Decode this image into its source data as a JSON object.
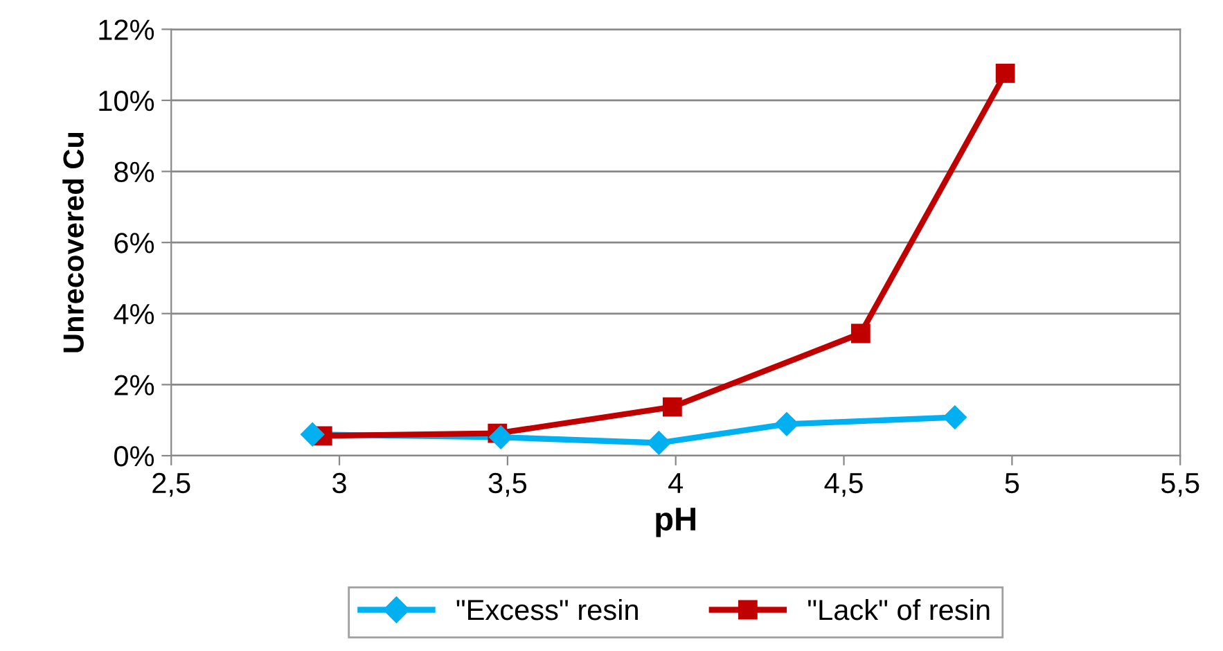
{
  "chart_data": {
    "type": "line",
    "xlabel": "pH",
    "ylabel": "Unrecovered Cu",
    "series": [
      {
        "name": "\"Excess\" resin",
        "color": "#00b0f0",
        "marker": "diamond",
        "x": [
          2.92,
          3.48,
          3.95,
          4.33,
          4.83
        ],
        "values": [
          0.6,
          0.52,
          0.36,
          0.89,
          1.08
        ]
      },
      {
        "name": "\"Lack\" of resin",
        "color": "#c00000",
        "marker": "square",
        "x": [
          2.95,
          3.47,
          3.99,
          4.55,
          4.98
        ],
        "values": [
          0.56,
          0.63,
          1.37,
          3.44,
          10.76
        ]
      }
    ],
    "xlim": [
      2.5,
      5.5
    ],
    "xticks": [
      {
        "value": 2.5,
        "label": "2,5"
      },
      3,
      {
        "value": 3.5,
        "label": "3,5"
      },
      4,
      {
        "value": 4.5,
        "label": "4,5"
      },
      5,
      {
        "value": 5.5,
        "label": "5,5"
      }
    ],
    "ylim": [
      0,
      12
    ],
    "yticks": [
      {
        "value": 0,
        "label": "0%"
      },
      {
        "value": 2,
        "label": "2%"
      },
      {
        "value": 4,
        "label": "4%"
      },
      {
        "value": 6,
        "label": "6%"
      },
      {
        "value": 8,
        "label": "8%"
      },
      {
        "value": 10,
        "label": "10%"
      },
      {
        "value": 12,
        "label": "12%"
      }
    ],
    "grid": "y",
    "legend": "bottom"
  }
}
